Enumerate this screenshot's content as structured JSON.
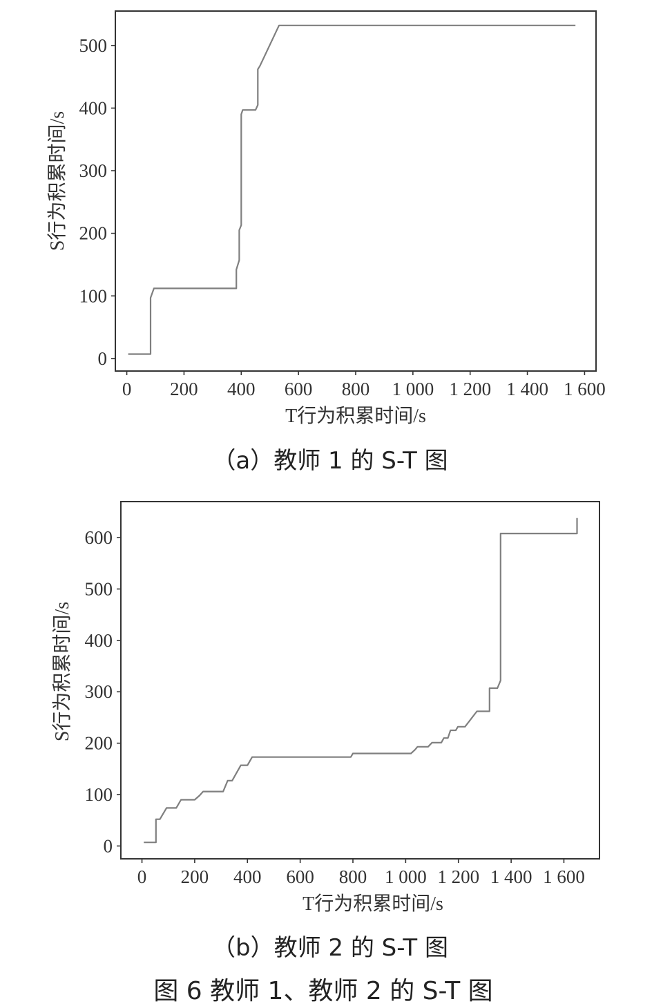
{
  "chart_data": [
    {
      "type": "line",
      "xlabel": "T行为积累时间/s",
      "ylabel": "S行为积累时间/s",
      "caption": "（a）教师 1 的 S-T 图",
      "xlim": [
        -40,
        1640
      ],
      "ylim": [
        -20,
        555
      ],
      "x_ticks": [
        {
          "value": 0,
          "label": "0"
        },
        {
          "value": 200,
          "label": "200"
        },
        {
          "value": 400,
          "label": "400"
        },
        {
          "value": 600,
          "label": "600"
        },
        {
          "value": 800,
          "label": "800"
        },
        {
          "value": 1000,
          "label": "1 000"
        },
        {
          "value": 1200,
          "label": "1 200"
        },
        {
          "value": 1400,
          "label": "1 400"
        },
        {
          "value": 1600,
          "label": "1 600"
        }
      ],
      "y_ticks": [
        {
          "value": 0,
          "label": "0"
        },
        {
          "value": 100,
          "label": "100"
        },
        {
          "value": 200,
          "label": "200"
        },
        {
          "value": 300,
          "label": "300"
        },
        {
          "value": 400,
          "label": "400"
        },
        {
          "value": 500,
          "label": "500"
        }
      ],
      "series": [
        {
          "color": "#7f7f7f",
          "points": [
            [
              5,
              7
            ],
            [
              83,
              7
            ],
            [
              83,
              97
            ],
            [
              95,
              112
            ],
            [
              383,
              112
            ],
            [
              383,
              142
            ],
            [
              393,
              157
            ],
            [
              393,
              205
            ],
            [
              400,
              213
            ],
            [
              400,
              390
            ],
            [
              405,
              397
            ],
            [
              450,
              397
            ],
            [
              458,
              405
            ],
            [
              458,
              462
            ],
            [
              465,
              467
            ],
            [
              532,
              532
            ],
            [
              1568,
              532
            ]
          ]
        }
      ]
    },
    {
      "type": "line",
      "xlabel": "T行为积累时间/s",
      "ylabel": "S行为积累时间/s",
      "caption": "（b）教师 2 的 S-T 图",
      "xlim": [
        -80,
        1735
      ],
      "ylim": [
        -25,
        670
      ],
      "x_ticks": [
        {
          "value": 0,
          "label": "0"
        },
        {
          "value": 200,
          "label": "200"
        },
        {
          "value": 400,
          "label": "400"
        },
        {
          "value": 600,
          "label": "600"
        },
        {
          "value": 800,
          "label": "800"
        },
        {
          "value": 1000,
          "label": "1 000"
        },
        {
          "value": 1200,
          "label": "1 200"
        },
        {
          "value": 1400,
          "label": "1 400"
        },
        {
          "value": 1600,
          "label": "1 600"
        }
      ],
      "y_ticks": [
        {
          "value": 0,
          "label": "0"
        },
        {
          "value": 100,
          "label": "100"
        },
        {
          "value": 200,
          "label": "200"
        },
        {
          "value": 300,
          "label": "300"
        },
        {
          "value": 400,
          "label": "400"
        },
        {
          "value": 500,
          "label": "500"
        },
        {
          "value": 600,
          "label": "600"
        }
      ],
      "series": [
        {
          "color": "#7f7f7f",
          "points": [
            [
              7,
              7
            ],
            [
              53,
              7
            ],
            [
              53,
              52
            ],
            [
              68,
              52
            ],
            [
              93,
              74
            ],
            [
              130,
              74
            ],
            [
              148,
              90
            ],
            [
              200,
              90
            ],
            [
              218,
              98
            ],
            [
              232,
              106
            ],
            [
              308,
              106
            ],
            [
              325,
              127
            ],
            [
              342,
              127
            ],
            [
              375,
              157
            ],
            [
              400,
              157
            ],
            [
              418,
              173
            ],
            [
              792,
              173
            ],
            [
              800,
              180
            ],
            [
              1020,
              180
            ],
            [
              1035,
              187
            ],
            [
              1045,
              193
            ],
            [
              1085,
              193
            ],
            [
              1100,
              201
            ],
            [
              1135,
              201
            ],
            [
              1145,
              210
            ],
            [
              1160,
              210
            ],
            [
              1170,
              225
            ],
            [
              1190,
              225
            ],
            [
              1198,
              232
            ],
            [
              1225,
              232
            ],
            [
              1270,
              262
            ],
            [
              1318,
              262
            ],
            [
              1318,
              307
            ],
            [
              1348,
              307
            ],
            [
              1360,
              322
            ],
            [
              1360,
              608
            ],
            [
              1650,
              608
            ],
            [
              1650,
              638
            ]
          ]
        }
      ]
    }
  ],
  "figure_caption": "图 6   教师 1、教师 2 的 S-T 图"
}
